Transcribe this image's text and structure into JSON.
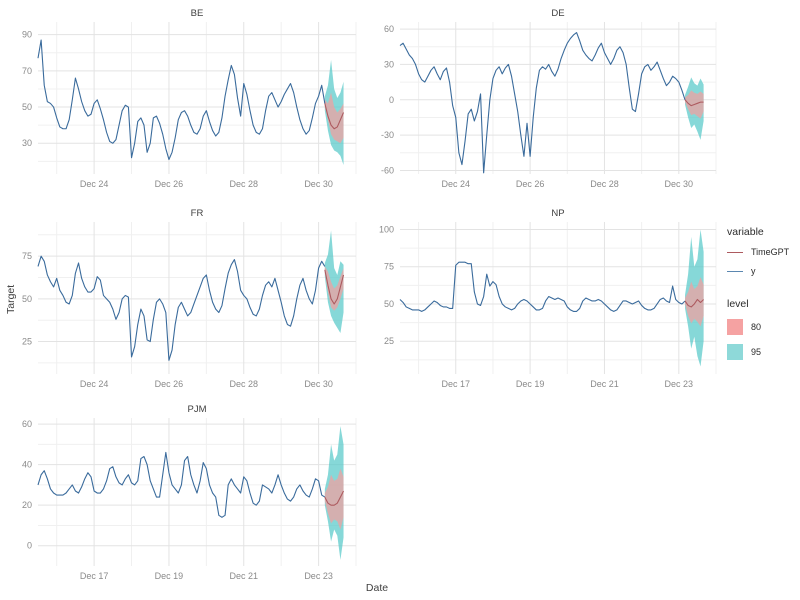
{
  "figure": {
    "background": "#ffffff"
  },
  "axis_labels": {
    "x": "Date",
    "y": "Target"
  },
  "colors": {
    "y_line": "#3a6b9c",
    "timegpt_line": "#ad5a5f",
    "level_80_fill": "#f2a0a0",
    "level_95_fill": "#52c8c8",
    "grid_major": "#e3e3e3",
    "grid_minor": "#f0f0f0",
    "tick_text": "#8a8a8a",
    "title_text": "#404040"
  },
  "legend": {
    "variable": {
      "title": "variable",
      "items": [
        {
          "label": "TimeGPT",
          "color": "#ad5a5f"
        },
        {
          "label": "y",
          "color": "#5b87b0"
        }
      ]
    },
    "level": {
      "title": "level",
      "items": [
        {
          "label": "80",
          "color": "#f5a2a2"
        },
        {
          "label": "95",
          "color": "#8ed9d9"
        }
      ]
    }
  },
  "chart_data": [
    {
      "type": "line",
      "title": "BE",
      "ylim": [
        13,
        97
      ],
      "yticks": [
        30,
        50,
        70,
        90
      ],
      "xlim": [
        -0.5,
        8
      ],
      "xticks": [
        1,
        3,
        5,
        7
      ],
      "xtick_labels": [
        "Dec 24",
        "Dec 26",
        "Dec 28",
        "Dec 30"
      ],
      "x_minor": [
        0,
        2,
        4,
        6,
        8
      ],
      "history": {
        "x_start": -0.5,
        "x_step": 0.0833333,
        "y": [
          77,
          87,
          62,
          53,
          52,
          50,
          44,
          39,
          38,
          38,
          43,
          54,
          66,
          60,
          53,
          48,
          45,
          46,
          52,
          54,
          49,
          43,
          36,
          31,
          30,
          32,
          40,
          48,
          51,
          50,
          22,
          30,
          42,
          44,
          40,
          25,
          30,
          44,
          45,
          41,
          35,
          27,
          21,
          25,
          33,
          43,
          47,
          48,
          45,
          40,
          36,
          35,
          38,
          45,
          48,
          42,
          37,
          34,
          36,
          44,
          56,
          65,
          73,
          68,
          55,
          45,
          63,
          57,
          48,
          40,
          36,
          35,
          38,
          48,
          56,
          58,
          54,
          50,
          53,
          57,
          60,
          63,
          58,
          50,
          43,
          38,
          35,
          37,
          44,
          52,
          56,
          62,
          52
        ]
      },
      "forecast": {
        "x_start": 7.1667,
        "x_step": 0.0833333,
        "mean": [
          52,
          45,
          40,
          38,
          39,
          43,
          47
        ],
        "lo80": [
          50,
          43,
          35,
          32,
          31,
          30,
          33
        ],
        "hi80": [
          54,
          52,
          58,
          50,
          47,
          49,
          52
        ],
        "lo95": [
          48,
          37,
          29,
          26,
          25,
          23,
          18
        ],
        "hi95": [
          56,
          62,
          76,
          60,
          55,
          58,
          64
        ]
      }
    },
    {
      "type": "line",
      "title": "DE",
      "ylim": [
        -63,
        66
      ],
      "yticks": [
        -60,
        -30,
        0,
        30,
        60
      ],
      "xlim": [
        -0.5,
        8
      ],
      "xticks": [
        1,
        3,
        5,
        7
      ],
      "xtick_labels": [
        "Dec 24",
        "Dec 26",
        "Dec 28",
        "Dec 30"
      ],
      "x_minor": [
        0,
        2,
        4,
        6,
        8
      ],
      "history": {
        "x_start": -0.5,
        "x_step": 0.0833333,
        "y": [
          46,
          48,
          43,
          38,
          35,
          30,
          22,
          17,
          15,
          20,
          25,
          28,
          22,
          17,
          24,
          27,
          15,
          -5,
          -15,
          -45,
          -55,
          -35,
          -12,
          -8,
          -18,
          -10,
          5,
          -62,
          -30,
          0,
          18,
          25,
          28,
          22,
          27,
          30,
          20,
          5,
          -10,
          -30,
          -48,
          -20,
          -48,
          -15,
          10,
          25,
          28,
          26,
          30,
          24,
          20,
          26,
          35,
          42,
          48,
          52,
          55,
          57,
          50,
          42,
          38,
          35,
          33,
          38,
          44,
          48,
          40,
          35,
          30,
          35,
          42,
          45,
          40,
          30,
          10,
          -8,
          -10,
          5,
          22,
          28,
          30,
          25,
          28,
          32,
          25,
          18,
          12,
          15,
          20,
          18,
          15,
          8,
          0
        ]
      },
      "forecast": {
        "x_start": 7.1667,
        "x_step": 0.0833333,
        "mean": [
          0,
          -3,
          -5,
          -4,
          -3,
          -2,
          -2
        ],
        "lo80": [
          -2,
          -8,
          -13,
          -12,
          -14,
          -16,
          -10
        ],
        "hi80": [
          2,
          4,
          8,
          6,
          5,
          7,
          5
        ],
        "lo95": [
          -4,
          -15,
          -24,
          -21,
          -27,
          -34,
          -18
        ],
        "hi95": [
          4,
          11,
          19,
          14,
          12,
          18,
          13
        ]
      }
    },
    {
      "type": "line",
      "title": "FR",
      "ylim": [
        6,
        95
      ],
      "yticks": [
        25,
        50,
        75
      ],
      "xlim": [
        -0.5,
        8
      ],
      "xticks": [
        1,
        3,
        5,
        7
      ],
      "xtick_labels": [
        "Dec 24",
        "Dec 26",
        "Dec 28",
        "Dec 30"
      ],
      "x_minor": [
        0,
        2,
        4,
        6,
        8
      ],
      "history": {
        "x_start": -0.5,
        "x_step": 0.0833333,
        "y": [
          69,
          75,
          72,
          64,
          60,
          57,
          62,
          55,
          52,
          48,
          47,
          52,
          65,
          71,
          62,
          57,
          54,
          54,
          56,
          63,
          61,
          52,
          50,
          48,
          44,
          38,
          42,
          50,
          52,
          51,
          16,
          22,
          35,
          44,
          40,
          26,
          25,
          38,
          48,
          50,
          47,
          42,
          14,
          20,
          35,
          45,
          48,
          44,
          40,
          42,
          47,
          52,
          57,
          62,
          64,
          55,
          48,
          44,
          42,
          46,
          56,
          65,
          70,
          73,
          66,
          55,
          52,
          50,
          45,
          41,
          40,
          44,
          52,
          58,
          60,
          57,
          62,
          55,
          48,
          40,
          35,
          34,
          40,
          50,
          58,
          62,
          55,
          50,
          47,
          55,
          68,
          72,
          69
        ]
      },
      "forecast": {
        "x_start": 7.1667,
        "x_step": 0.0833333,
        "mean": [
          67,
          58,
          50,
          47,
          50,
          57,
          64
        ],
        "lo80": [
          65,
          54,
          45,
          43,
          45,
          50,
          56
        ],
        "hi80": [
          69,
          66,
          60,
          56,
          58,
          63,
          68
        ],
        "lo95": [
          63,
          48,
          40,
          36,
          33,
          30,
          42
        ],
        "hi95": [
          71,
          76,
          90,
          68,
          64,
          72,
          70
        ]
      }
    },
    {
      "type": "line",
      "title": "NP",
      "ylim": [
        3,
        105
      ],
      "yticks": [
        25,
        50,
        75,
        100
      ],
      "xlim": [
        -0.5,
        8
      ],
      "xticks": [
        1,
        3,
        5,
        7
      ],
      "xtick_labels": [
        "Dec 17",
        "Dec 19",
        "Dec 21",
        "Dec 23"
      ],
      "x_minor": [
        0,
        2,
        4,
        6,
        8
      ],
      "history": {
        "x_start": -0.5,
        "x_step": 0.0833333,
        "y": [
          53,
          51,
          48,
          47,
          46,
          46,
          46,
          45,
          46,
          48,
          50,
          52,
          51,
          49,
          48,
          48,
          47,
          47,
          76,
          78,
          78,
          78,
          77,
          77,
          58,
          50,
          49,
          55,
          70,
          62,
          65,
          63,
          55,
          50,
          48,
          47,
          46,
          47,
          50,
          52,
          53,
          52,
          50,
          48,
          46,
          46,
          47,
          52,
          55,
          54,
          53,
          54,
          53,
          52,
          48,
          46,
          45,
          45,
          47,
          52,
          54,
          53,
          52,
          52,
          53,
          52,
          50,
          48,
          46,
          45,
          46,
          49,
          52,
          52,
          51,
          50,
          51,
          52,
          49,
          47,
          46,
          46,
          47,
          50,
          53,
          54,
          52,
          51,
          62,
          53,
          51,
          50,
          52
        ]
      },
      "forecast": {
        "x_start": 7.1667,
        "x_step": 0.0833333,
        "mean": [
          52,
          49,
          48,
          50,
          53,
          51,
          53
        ],
        "lo80": [
          50,
          42,
          37,
          40,
          38,
          35,
          42
        ],
        "hi80": [
          54,
          58,
          65,
          60,
          62,
          68,
          63
        ],
        "lo95": [
          47,
          35,
          20,
          28,
          15,
          8,
          25
        ],
        "hi95": [
          56,
          70,
          95,
          75,
          80,
          100,
          85
        ]
      }
    },
    {
      "type": "line",
      "title": "PJM",
      "ylim": [
        -10,
        63
      ],
      "yticks": [
        0,
        20,
        40,
        60
      ],
      "xlim": [
        -0.5,
        8
      ],
      "xticks": [
        1,
        3,
        5,
        7
      ],
      "xtick_labels": [
        "Dec 17",
        "Dec 19",
        "Dec 21",
        "Dec 23"
      ],
      "x_minor": [
        0,
        2,
        4,
        6,
        8
      ],
      "history": {
        "x_start": -0.5,
        "x_step": 0.0833333,
        "y": [
          30,
          35,
          37,
          33,
          28,
          26,
          25,
          25,
          25,
          26,
          28,
          30,
          27,
          26,
          29,
          33,
          36,
          34,
          27,
          26,
          26,
          28,
          32,
          38,
          39,
          34,
          31,
          30,
          33,
          35,
          31,
          30,
          32,
          43,
          44,
          40,
          32,
          28,
          24,
          24,
          35,
          46,
          36,
          30,
          28,
          26,
          30,
          42,
          44,
          35,
          30,
          26,
          32,
          41,
          38,
          30,
          26,
          24,
          15,
          14,
          15,
          30,
          33,
          30,
          28,
          26,
          34,
          32,
          26,
          21,
          20,
          22,
          30,
          29,
          28,
          26,
          30,
          35,
          30,
          26,
          23,
          22,
          24,
          28,
          30,
          27,
          25,
          24,
          28,
          33,
          32,
          25,
          24
        ]
      },
      "forecast": {
        "x_start": 7.1667,
        "x_step": 0.0833333,
        "mean": [
          24,
          21,
          20,
          20,
          21,
          24,
          27
        ],
        "lo80": [
          22,
          16,
          11,
          13,
          12,
          8,
          14
        ],
        "hi80": [
          26,
          29,
          35,
          32,
          33,
          38,
          34
        ],
        "lo95": [
          20,
          12,
          2,
          8,
          5,
          -7,
          4
        ],
        "hi95": [
          28,
          35,
          50,
          42,
          45,
          59,
          50
        ]
      }
    }
  ]
}
